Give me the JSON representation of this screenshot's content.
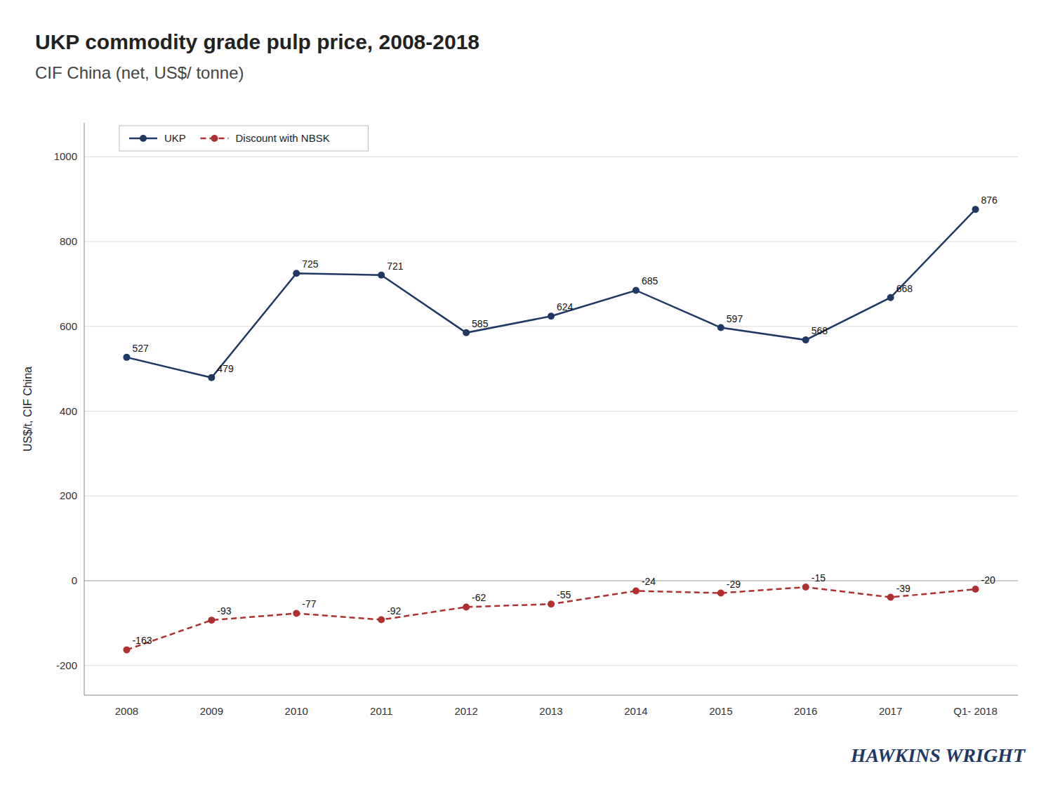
{
  "chart_data": {
    "type": "line",
    "title": "UKP commodity grade pulp price, 2008-2018",
    "subtitle": "CIF China (net, US$/ tonne)",
    "y_label": "US$/t, CIF China",
    "annotations": [
      "HAWKINS WRIGHT"
    ],
    "categories": [
      "2008",
      "2009",
      "2010",
      "2011",
      "2012",
      "2013",
      "2014",
      "2015",
      "2016",
      "2017",
      "Q1- 2018"
    ],
    "series": [
      {
        "name": "UKP",
        "color": "#1F3864",
        "line_style": "solid",
        "marker": "circle",
        "values": [
          527,
          479,
          725,
          721,
          585,
          624,
          685,
          597,
          568,
          668,
          876
        ]
      },
      {
        "name": "Discount with NBSK",
        "color": "#B03030",
        "line_style": "dashed",
        "marker": "circle",
        "values": [
          -163,
          -93,
          -77,
          -92,
          -62,
          -55,
          -24,
          -29,
          -15,
          -39,
          -20
        ]
      }
    ],
    "ylim": [
      -270,
      1080
    ],
    "yticks": [
      -200,
      0,
      200,
      400,
      600,
      800,
      1000
    ],
    "grid": true,
    "legend": "upper left",
    "data_labels": true
  }
}
